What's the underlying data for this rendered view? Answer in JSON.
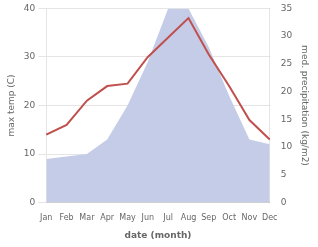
{
  "chart_data": {
    "type": "line",
    "xlabel": "date (month)",
    "ylabel": "max temp (C)",
    "y2label": "med. precipitation (kg/m2)",
    "categories": [
      "Jan",
      "Feb",
      "Mar",
      "Apr",
      "May",
      "Jun",
      "Jul",
      "Aug",
      "Sep",
      "Oct",
      "Nov",
      "Dec"
    ],
    "series": [
      {
        "type": "area",
        "color": "#c5cce8",
        "values": [
          9,
          9.5,
          10,
          13,
          20,
          29,
          40,
          40,
          32,
          22,
          13,
          12
        ]
      },
      {
        "type": "line",
        "color": "#c0504d",
        "values": [
          14,
          16,
          21,
          24,
          24.5,
          30,
          34,
          38,
          30.5,
          24,
          17,
          13
        ]
      }
    ],
    "ylim": [
      0,
      40
    ],
    "yticks": [
      0,
      10,
      20,
      30,
      40
    ],
    "y2lim": [
      0,
      35
    ],
    "y2ticks": [
      0,
      5,
      10,
      15,
      20,
      25,
      30,
      35
    ],
    "grid": true
  }
}
